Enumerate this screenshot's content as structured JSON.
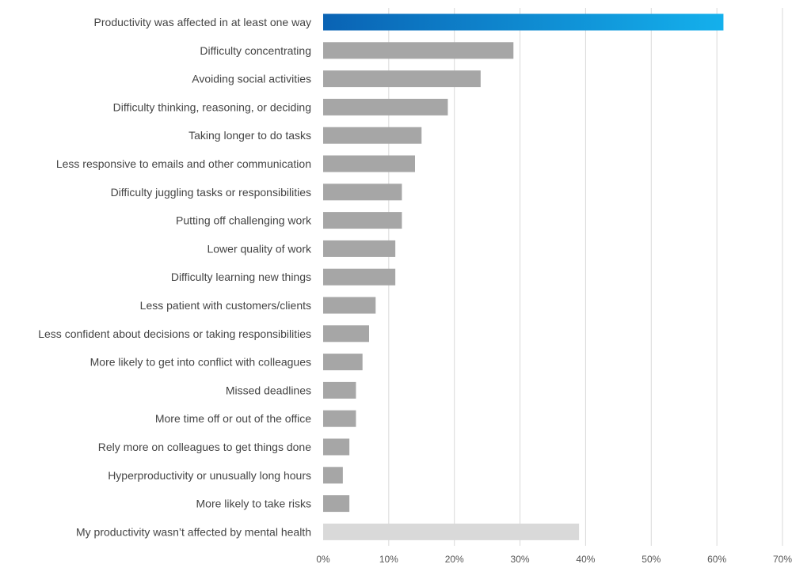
{
  "chart_data": {
    "type": "bar",
    "orientation": "horizontal",
    "categories": [
      "Productivity was affected in at least one way",
      "Difficulty concentrating",
      "Avoiding social activities",
      "Difficulty thinking, reasoning, or deciding",
      "Taking longer to do tasks",
      "Less responsive to emails and other communication",
      "Difficulty juggling tasks or responsibilities",
      "Putting off challenging work",
      "Lower quality of work",
      "Difficulty learning new things",
      "Less patient with customers/clients",
      "Less confident about decisions or taking responsibilities",
      "More likely to get into conflict with colleagues",
      "Missed deadlines",
      "More time off or out of the office",
      "Rely more on colleagues to get things done",
      "Hyperproductivity or unusually long hours",
      "More likely to take risks",
      "My productivity wasn’t affected by mental health"
    ],
    "values": [
      61,
      29,
      24,
      19,
      15,
      14,
      12,
      12,
      11,
      11,
      8,
      7,
      6,
      5,
      5,
      4,
      3,
      4,
      39
    ],
    "xlim": [
      0,
      70
    ],
    "x_ticks": [
      "0%",
      "10%",
      "20%",
      "30%",
      "40%",
      "50%",
      "60%",
      "70%"
    ],
    "tick_values": [
      0,
      10,
      20,
      30,
      40,
      50,
      60,
      70
    ],
    "grid": true,
    "colors": {
      "highlight_start": "#0a63b4",
      "highlight_end": "#14b0ec",
      "default_bar": "#a6a6a6",
      "not_affected_bar": "#d9d9d9"
    },
    "bar_color_roles": [
      "highlight",
      "default",
      "default",
      "default",
      "default",
      "default",
      "default",
      "default",
      "default",
      "default",
      "default",
      "default",
      "default",
      "default",
      "default",
      "default",
      "default",
      "default",
      "not_affected"
    ]
  }
}
